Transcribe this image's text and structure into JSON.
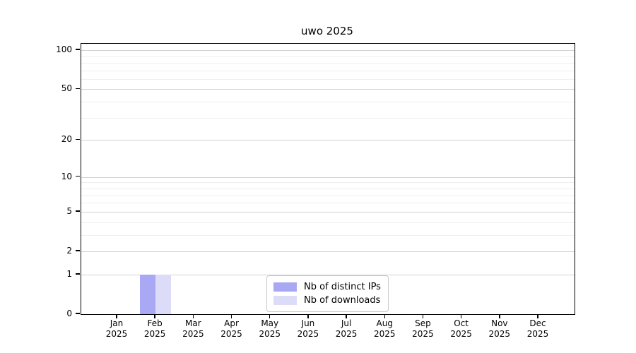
{
  "chart_data": {
    "type": "bar",
    "title": "uwo 2025",
    "categories": [
      {
        "label": "Jan",
        "sublabel": "2025"
      },
      {
        "label": "Feb",
        "sublabel": "2025"
      },
      {
        "label": "Mar",
        "sublabel": "2025"
      },
      {
        "label": "Apr",
        "sublabel": "2025"
      },
      {
        "label": "May",
        "sublabel": "2025"
      },
      {
        "label": "Jun",
        "sublabel": "2025"
      },
      {
        "label": "Jul",
        "sublabel": "2025"
      },
      {
        "label": "Aug",
        "sublabel": "2025"
      },
      {
        "label": "Sep",
        "sublabel": "2025"
      },
      {
        "label": "Oct",
        "sublabel": "2025"
      },
      {
        "label": "Nov",
        "sublabel": "2025"
      },
      {
        "label": "Dec",
        "sublabel": "2025"
      }
    ],
    "series": [
      {
        "name": "Nb of distinct IPs",
        "color": "#a8a8f4",
        "values": [
          0,
          1,
          0,
          0,
          0,
          0,
          0,
          0,
          0,
          0,
          0,
          0
        ]
      },
      {
        "name": "Nb of downloads",
        "color": "#dcdcf8",
        "values": [
          0,
          1,
          0,
          0,
          0,
          0,
          0,
          0,
          0,
          0,
          0,
          0
        ]
      }
    ],
    "y_axis": {
      "scale": "log1p",
      "ticks": [
        0,
        1,
        2,
        5,
        10,
        20,
        50,
        100
      ],
      "minor_gridlines": [
        3,
        4,
        6,
        7,
        8,
        9,
        30,
        40,
        60,
        70,
        80,
        90
      ],
      "ylim": [
        0,
        112
      ]
    },
    "legend_position": "bottom-center",
    "grid": true,
    "colors": {
      "major_grid": "#d2d2d2",
      "minor_grid": "#efefef",
      "axis": "#000000",
      "background": "#ffffff"
    }
  }
}
